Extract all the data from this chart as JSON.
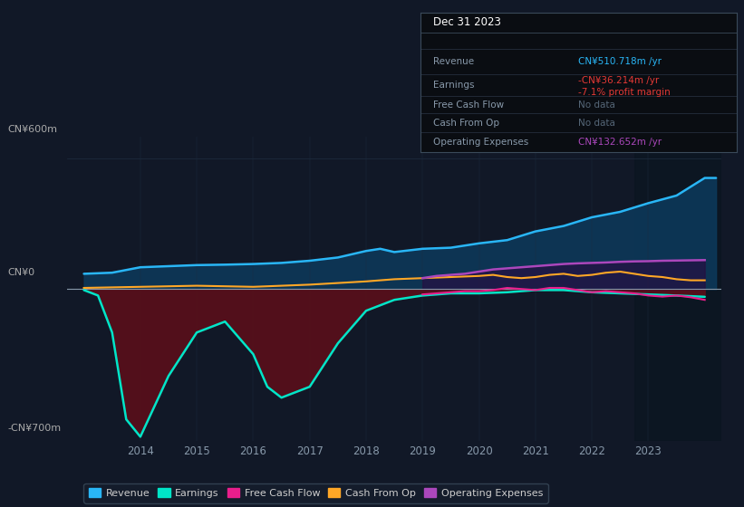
{
  "background_color": "#111827",
  "plot_bg_color": "#111827",
  "ylim": [
    -700,
    700
  ],
  "xlim": [
    2012.7,
    2024.3
  ],
  "grid_color": "#1e2d40",
  "zero_line_color": "#8899aa",
  "colors": {
    "revenue": "#29b6f6",
    "earnings": "#00e5c8",
    "free_cash_flow": "#e91e8c",
    "cash_from_op": "#ffa726",
    "operating_expenses": "#ab47bc"
  },
  "fill_revenue": "#0d3a5c",
  "fill_earnings_neg": "#5a0f1a",
  "fill_op_exp": "#2a0a40",
  "years_annual": [
    2013,
    2014,
    2015,
    2016,
    2017,
    2018,
    2019,
    2020,
    2021,
    2022,
    2023,
    2024
  ],
  "revenue": [
    80,
    100,
    110,
    120,
    140,
    170,
    190,
    220,
    280,
    340,
    420,
    511
  ],
  "earnings": [
    -10,
    -680,
    -120,
    -500,
    -350,
    -80,
    -30,
    -20,
    -5,
    -15,
    -30,
    -36
  ],
  "earnings_quarterly": {
    "x": [
      2013.0,
      2013.25,
      2013.5,
      2013.75,
      2014.0,
      2014.5,
      2015.0,
      2015.5,
      2016.0,
      2016.25,
      2016.5,
      2017.0,
      2017.5,
      2018.0,
      2018.5,
      2019.0,
      2019.5,
      2020.0,
      2020.5,
      2021.0,
      2021.5,
      2022.0,
      2022.5,
      2023.0,
      2023.5,
      2024.0
    ],
    "y": [
      -5,
      -30,
      -200,
      -600,
      -680,
      -400,
      -200,
      -150,
      -300,
      -450,
      -500,
      -450,
      -250,
      -100,
      -50,
      -30,
      -20,
      -20,
      -15,
      -5,
      -5,
      -15,
      -20,
      -25,
      -30,
      -36
    ]
  },
  "revenue_quarterly": {
    "x": [
      2013.0,
      2013.5,
      2014.0,
      2014.5,
      2015.0,
      2015.5,
      2016.0,
      2016.5,
      2017.0,
      2017.5,
      2018.0,
      2018.25,
      2018.5,
      2019.0,
      2019.5,
      2020.0,
      2020.5,
      2021.0,
      2021.5,
      2022.0,
      2022.5,
      2023.0,
      2023.5,
      2024.0,
      2024.2
    ],
    "y": [
      70,
      75,
      100,
      105,
      110,
      112,
      115,
      120,
      130,
      145,
      175,
      185,
      170,
      185,
      190,
      210,
      225,
      265,
      290,
      330,
      355,
      395,
      430,
      511,
      511
    ]
  },
  "cash_from_op_quarterly": {
    "x": [
      2013.0,
      2014.0,
      2015.0,
      2016.0,
      2017.0,
      2018.0,
      2018.5,
      2019.0,
      2019.5,
      2020.0,
      2020.25,
      2020.5,
      2020.75,
      2021.0,
      2021.25,
      2021.5,
      2021.75,
      2022.0,
      2022.25,
      2022.5,
      2022.75,
      2023.0,
      2023.25,
      2023.5,
      2023.75,
      2024.0
    ],
    "y": [
      5,
      10,
      15,
      10,
      20,
      35,
      45,
      50,
      55,
      60,
      65,
      55,
      50,
      55,
      65,
      70,
      60,
      65,
      75,
      80,
      70,
      60,
      55,
      45,
      40,
      40
    ]
  },
  "free_cash_flow_quarterly": {
    "x": [
      2019.0,
      2019.25,
      2019.5,
      2019.75,
      2020.0,
      2020.25,
      2020.5,
      2020.75,
      2021.0,
      2021.25,
      2021.5,
      2021.75,
      2022.0,
      2022.25,
      2022.5,
      2022.75,
      2023.0,
      2023.25,
      2023.5,
      2023.75,
      2024.0
    ],
    "y": [
      -25,
      -20,
      -15,
      -10,
      -10,
      -5,
      5,
      0,
      -5,
      5,
      5,
      -5,
      -15,
      -10,
      -15,
      -20,
      -30,
      -35,
      -30,
      -38,
      -50
    ]
  },
  "op_exp_quarterly": {
    "x": [
      2019.0,
      2019.25,
      2019.5,
      2019.75,
      2020.0,
      2020.25,
      2020.5,
      2020.75,
      2021.0,
      2021.25,
      2021.5,
      2021.75,
      2022.0,
      2022.25,
      2022.5,
      2022.75,
      2023.0,
      2023.25,
      2023.5,
      2023.75,
      2024.0
    ],
    "y": [
      50,
      60,
      65,
      70,
      80,
      90,
      95,
      100,
      105,
      110,
      115,
      118,
      120,
      122,
      125,
      127,
      128,
      130,
      131,
      132,
      133
    ]
  },
  "shaded_x_start": 2022.75,
  "info_box": {
    "date": "Dec 31 2023",
    "revenue_label": "Revenue",
    "revenue_val": "CN¥510.718m /yr",
    "revenue_color": "#29b6f6",
    "earnings_label": "Earnings",
    "earnings_val": "-CN¥36.214m /yr",
    "earnings_color": "#e53935",
    "margin_val": "-7.1% profit margin",
    "margin_color": "#e53935",
    "fcf_label": "Free Cash Flow",
    "fcf_val": "No data",
    "fcf_val_color": "#556677",
    "cashop_label": "Cash From Op",
    "cashop_val": "No data",
    "cashop_val_color": "#556677",
    "opex_label": "Operating Expenses",
    "opex_val": "CN¥132.652m /yr",
    "opex_color": "#ab47bc"
  },
  "legend": [
    {
      "label": "Revenue",
      "color": "#29b6f6"
    },
    {
      "label": "Earnings",
      "color": "#00e5c8"
    },
    {
      "label": "Free Cash Flow",
      "color": "#e91e8c"
    },
    {
      "label": "Cash From Op",
      "color": "#ffa726"
    },
    {
      "label": "Operating Expenses",
      "color": "#ab47bc"
    }
  ],
  "xticks": [
    2014,
    2015,
    2016,
    2017,
    2018,
    2019,
    2020,
    2021,
    2022,
    2023
  ]
}
